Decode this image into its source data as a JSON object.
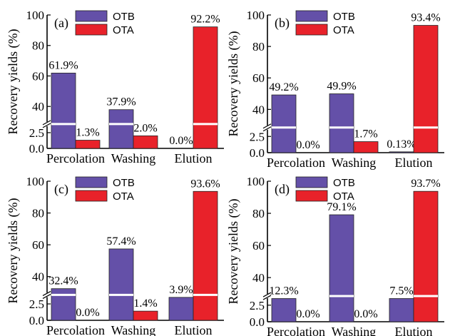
{
  "colors": {
    "OTB": "#6450a8",
    "OTA": "#e8222a"
  },
  "chart_data": [
    {
      "panel": "(a)",
      "type": "bar",
      "categories": [
        "Percolation",
        "Washing",
        "Elution"
      ],
      "series": [
        {
          "name": "OTB",
          "values": [
            61.9,
            37.9,
            0.0
          ],
          "labels": [
            "61.9%",
            "37.9%",
            "0.0%"
          ]
        },
        {
          "name": "OTA",
          "values": [
            1.3,
            2.0,
            92.2
          ],
          "labels": [
            "1.3%",
            "2.0%",
            "92.2%"
          ]
        }
      ],
      "ylabel": "Recovery yields (%)",
      "ylim": [
        0,
        100
      ],
      "axis_break": [
        3.5,
        30
      ],
      "yticks": [
        "0.0",
        "2.5",
        "40",
        "60",
        "80",
        "100"
      ],
      "legend": "top-left"
    },
    {
      "panel": "(b)",
      "type": "bar",
      "categories": [
        "Percolation",
        "Washing",
        "Elution"
      ],
      "series": [
        {
          "name": "OTB",
          "values": [
            49.2,
            49.9,
            0.13
          ],
          "labels": [
            "49.2%",
            "49.9%",
            "0.13%"
          ]
        },
        {
          "name": "OTA",
          "values": [
            0.0,
            1.7,
            93.4
          ],
          "labels": [
            "0.0%",
            "1.7%",
            "93.4%"
          ]
        }
      ],
      "ylabel": "Recovery yields (%)",
      "ylim": [
        0,
        100
      ],
      "axis_break": [
        3.5,
        30
      ],
      "yticks": [
        "0.0",
        "2.5",
        "40",
        "60",
        "80",
        "100"
      ],
      "legend": "top-left"
    },
    {
      "panel": "(c)",
      "type": "bar",
      "categories": [
        "Percolation",
        "Washing",
        "Elution"
      ],
      "series": [
        {
          "name": "OTB",
          "values": [
            32.4,
            57.4,
            3.9
          ],
          "labels": [
            "32.4%",
            "57.4%",
            "3.9%"
          ]
        },
        {
          "name": "OTA",
          "values": [
            0.0,
            1.4,
            93.6
          ],
          "labels": [
            "0.0%",
            "1.4%",
            "93.6%"
          ]
        }
      ],
      "ylabel": "Recovery yields (%)",
      "ylim": [
        0,
        100
      ],
      "axis_break": [
        3.5,
        30
      ],
      "yticks": [
        "0.0",
        "2.5",
        "40",
        "60",
        "80",
        "100"
      ],
      "legend": "top-left"
    },
    {
      "panel": "(d)",
      "type": "bar",
      "categories": [
        "Percolation",
        "Washing",
        "Elution"
      ],
      "series": [
        {
          "name": "OTB",
          "values": [
            12.3,
            79.1,
            7.5
          ],
          "labels": [
            "12.3%",
            "79.1%",
            "7.5%"
          ]
        },
        {
          "name": "OTA",
          "values": [
            0.0,
            0.0,
            93.7
          ],
          "labels": [
            "0.0%",
            "0.0%",
            "93.7%"
          ]
        }
      ],
      "ylabel": "Recovery yields (%)",
      "ylim": [
        0,
        100
      ],
      "axis_break": [
        3.5,
        30
      ],
      "yticks": [
        "0.0",
        "2.5",
        "40",
        "60",
        "80",
        "100"
      ],
      "legend": "top-left"
    }
  ]
}
